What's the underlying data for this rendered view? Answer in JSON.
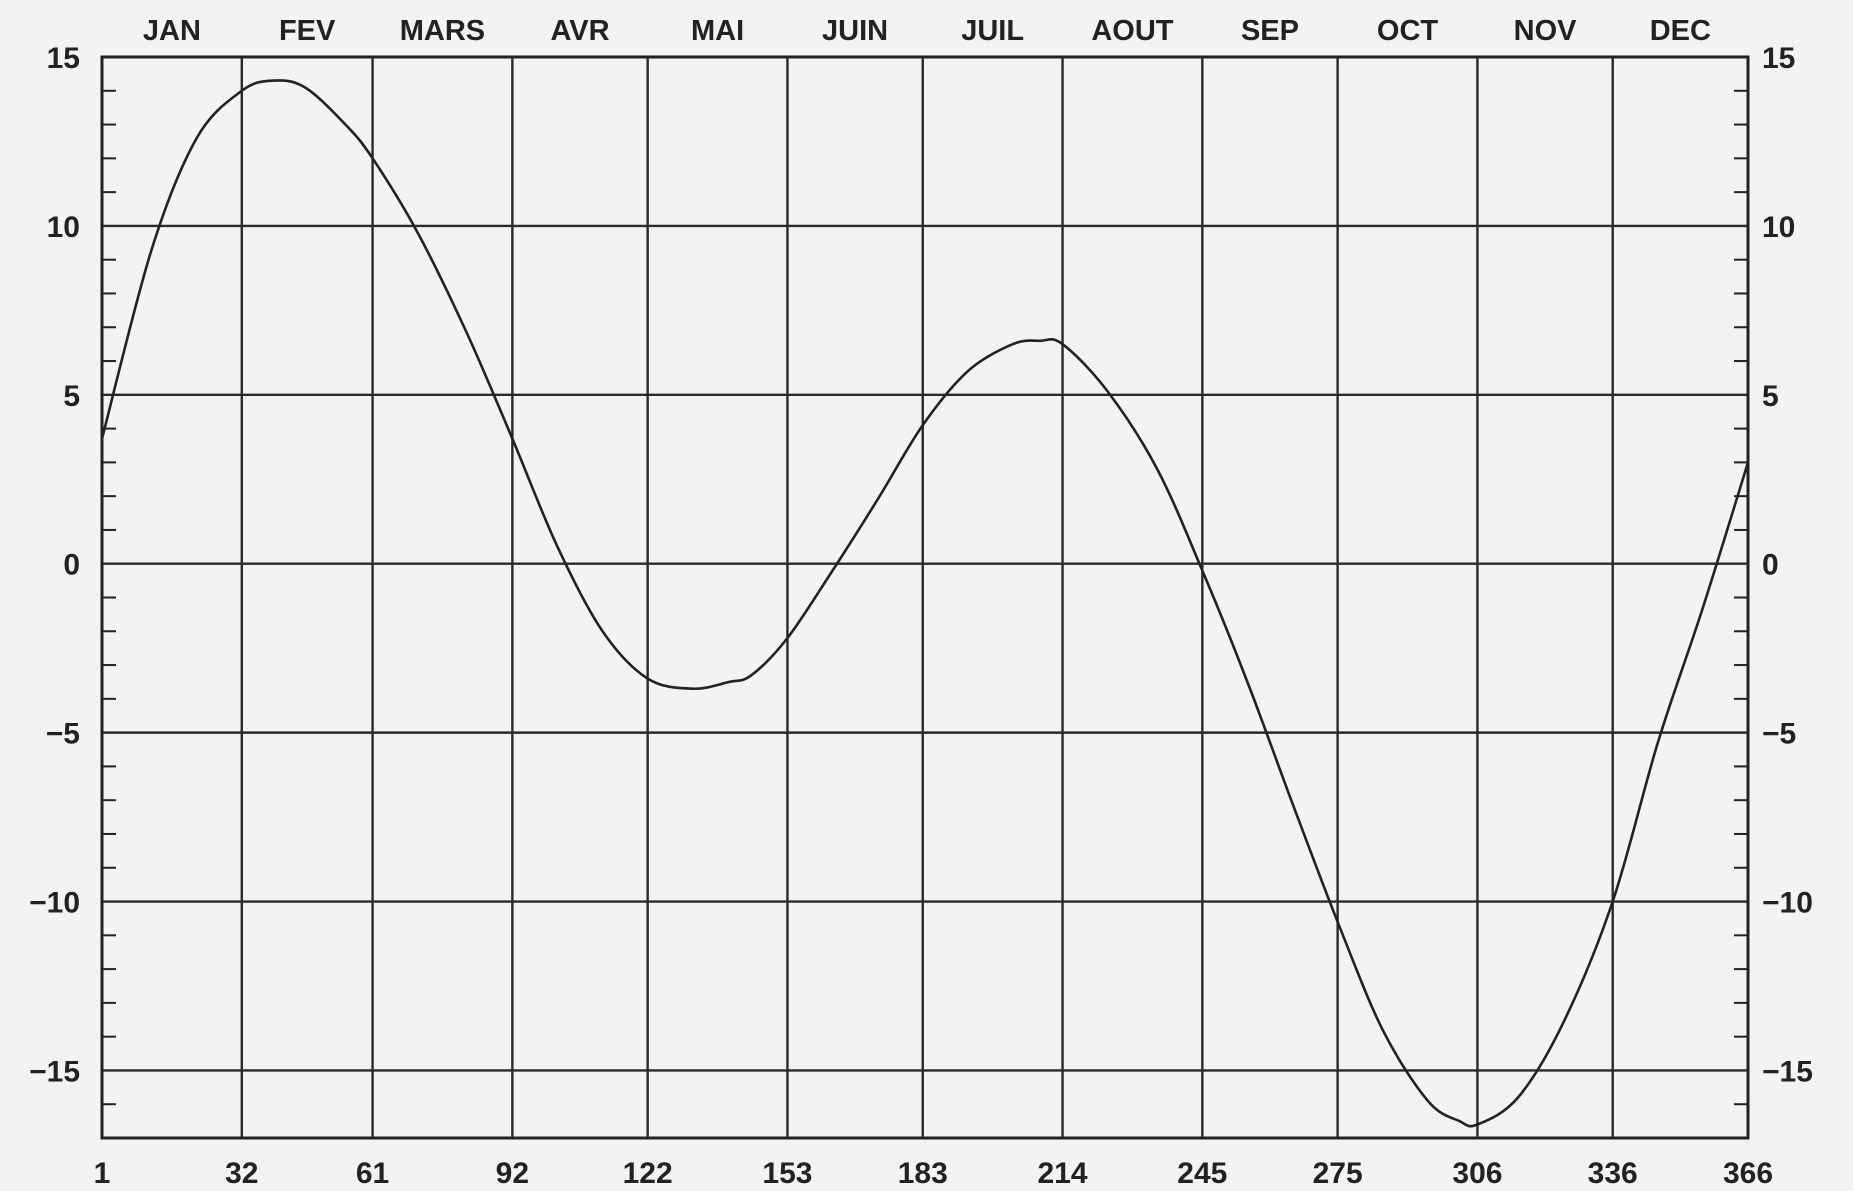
{
  "chart_data": {
    "type": "line",
    "title": "",
    "xlabel": "",
    "ylabel": "",
    "xlim": [
      1,
      366
    ],
    "ylim": [
      -17,
      15
    ],
    "grid": true,
    "x_ticks": [
      1,
      32,
      61,
      92,
      122,
      153,
      183,
      214,
      245,
      275,
      306,
      336,
      366
    ],
    "x_tick_labels": [
      "1",
      "32",
      "61",
      "92",
      "122",
      "153",
      "183",
      "214",
      "245",
      "275",
      "306",
      "336",
      "366"
    ],
    "y_ticks": [
      15,
      10,
      5,
      0,
      -5,
      -10,
      -15
    ],
    "y_tick_labels": [
      "15",
      "10",
      "5",
      "0",
      "−5",
      "−10",
      "−15"
    ],
    "months": [
      {
        "label": "JAN",
        "start": 1,
        "end": 32
      },
      {
        "label": "FEV",
        "start": 32,
        "end": 61
      },
      {
        "label": "MARS",
        "start": 61,
        "end": 92
      },
      {
        "label": "AVR",
        "start": 92,
        "end": 122
      },
      {
        "label": "MAI",
        "start": 122,
        "end": 153
      },
      {
        "label": "JUIN",
        "start": 153,
        "end": 183
      },
      {
        "label": "JUIL",
        "start": 183,
        "end": 214
      },
      {
        "label": "AOUT",
        "start": 214,
        "end": 245
      },
      {
        "label": "SEP",
        "start": 245,
        "end": 275
      },
      {
        "label": "OCT",
        "start": 275,
        "end": 306
      },
      {
        "label": "NOV",
        "start": 306,
        "end": 336
      },
      {
        "label": "DEC",
        "start": 336,
        "end": 366
      }
    ],
    "series": [
      {
        "x": [
          1,
          12,
          22,
          32,
          39,
          46,
          55,
          61,
          71,
          82,
          92,
          102,
          112,
          122,
          132,
          140,
          145,
          153,
          163,
          173,
          183,
          193,
          203,
          209,
          214,
          224,
          235,
          245,
          255,
          265,
          275,
          285,
          295,
          302,
          306,
          315,
          325,
          336,
          346,
          356,
          366
        ],
        "y": [
          3.7,
          9.3,
          12.6,
          14.0,
          14.3,
          14.1,
          13.0,
          12.0,
          9.8,
          6.8,
          3.7,
          0.5,
          -2.0,
          -3.4,
          -3.7,
          -3.5,
          -3.3,
          -2.2,
          -0.2,
          1.9,
          4.1,
          5.7,
          6.5,
          6.6,
          6.5,
          5.1,
          2.8,
          -0.2,
          -3.5,
          -7.1,
          -10.6,
          -13.8,
          -15.9,
          -16.5,
          -16.6,
          -15.8,
          -13.6,
          -10.0,
          -5.3,
          -1.3,
          3.0
        ]
      }
    ]
  }
}
